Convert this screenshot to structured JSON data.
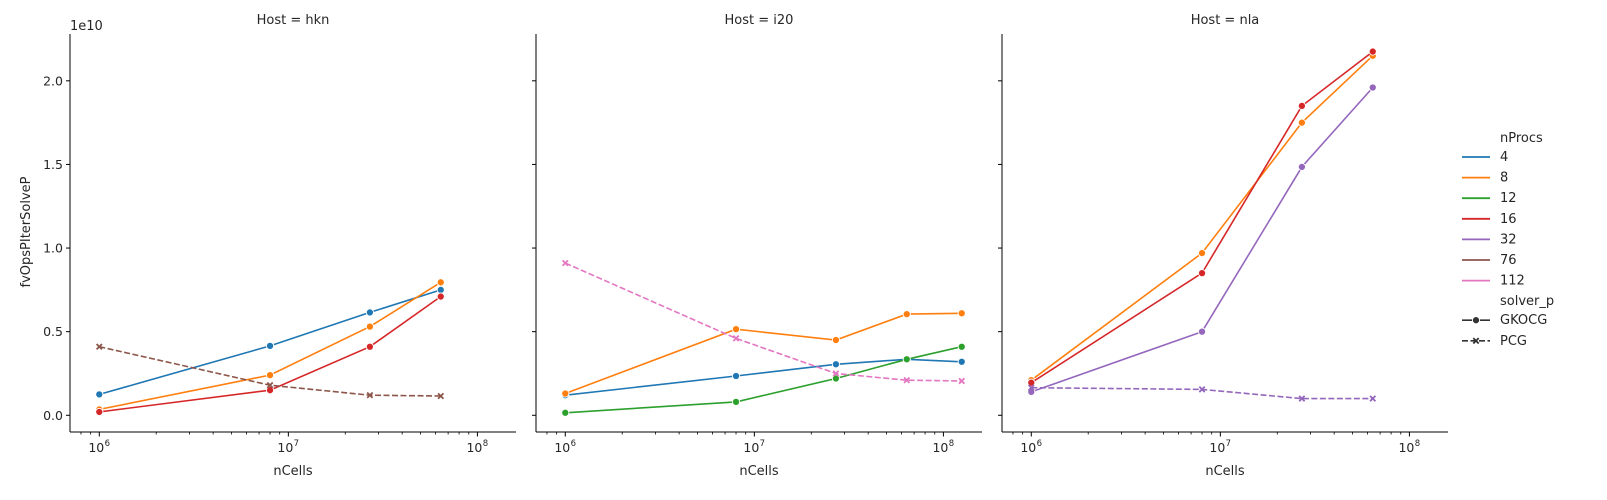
{
  "chart_data": {
    "type": "line",
    "ylabel": "fvOpsPIterSolveP",
    "xlabel": "nCells",
    "y_offset_label": "1e10",
    "x_scale": "log",
    "xlim": [
      700000,
      160000000
    ],
    "ylim": [
      -1000000000.0,
      22800000000.0
    ],
    "y_ticks": [
      0,
      5000000000.0,
      10000000000.0,
      15000000000.0,
      20000000000.0
    ],
    "y_tick_labels": [
      "0.0",
      "0.5",
      "1.0",
      "1.5",
      "2.0"
    ],
    "x_ticks": [
      1000000.0,
      10000000.0,
      100000000.0
    ],
    "x_tick_labels": [
      [
        "10",
        "6"
      ],
      [
        "10",
        "7"
      ],
      [
        "10",
        "8"
      ]
    ],
    "legend": {
      "placement": "right",
      "hue_title": "nProcs",
      "hue": [
        {
          "label": "4",
          "color": "#1f77b4"
        },
        {
          "label": "8",
          "color": "#ff7f0e"
        },
        {
          "label": "12",
          "color": "#2ca02c"
        },
        {
          "label": "16",
          "color": "#d62728"
        },
        {
          "label": "32",
          "color": "#9467bd"
        },
        {
          "label": "76",
          "color": "#8c564b"
        },
        {
          "label": "112",
          "color": "#e377c2"
        }
      ],
      "style_title": "solver_p",
      "style": [
        {
          "label": "GKOCG",
          "marker": "circle",
          "dash": "solid"
        },
        {
          "label": "PCG",
          "marker": "x",
          "dash": "dashed"
        }
      ]
    },
    "panels": [
      {
        "title": "Host = hkn",
        "series": [
          {
            "nprocs": "4",
            "solver": "GKOCG",
            "x": [
              1000000.0,
              8000000.0,
              27000000.0,
              64000000.0
            ],
            "y": [
              1250000000.0,
              4150000000.0,
              6150000000.0,
              7500000000.0
            ]
          },
          {
            "nprocs": "8",
            "solver": "GKOCG",
            "x": [
              1000000.0,
              8000000.0,
              27000000.0,
              64000000.0
            ],
            "y": [
              350000000.0,
              2400000000.0,
              5300000000.0,
              7950000000.0
            ]
          },
          {
            "nprocs": "16",
            "solver": "GKOCG",
            "x": [
              1000000.0,
              8000000.0,
              27000000.0,
              64000000.0
            ],
            "y": [
              200000000.0,
              1500000000.0,
              4100000000.0,
              7100000000.0
            ]
          },
          {
            "nprocs": "76",
            "solver": "PCG",
            "x": [
              1000000.0,
              8000000.0,
              27000000.0,
              64000000.0
            ],
            "y": [
              4100000000.0,
              1800000000.0,
              1200000000.0,
              1150000000.0
            ]
          }
        ]
      },
      {
        "title": "Host = i20",
        "series": [
          {
            "nprocs": "4",
            "solver": "GKOCG",
            "x": [
              1000000.0,
              8000000.0,
              27000000.0,
              64000000.0,
              125000000.0
            ],
            "y": [
              1200000000.0,
              2350000000.0,
              3050000000.0,
              3350000000.0,
              3200000000.0
            ]
          },
          {
            "nprocs": "8",
            "solver": "GKOCG",
            "x": [
              1000000.0,
              8000000.0,
              27000000.0,
              64000000.0,
              125000000.0
            ],
            "y": [
              1300000000.0,
              5150000000.0,
              4500000000.0,
              6050000000.0,
              6100000000.0
            ]
          },
          {
            "nprocs": "12",
            "solver": "GKOCG",
            "x": [
              1000000.0,
              8000000.0,
              27000000.0,
              64000000.0,
              125000000.0
            ],
            "y": [
              150000000.0,
              800000000.0,
              2200000000.0,
              3350000000.0,
              4100000000.0
            ]
          },
          {
            "nprocs": "112",
            "solver": "PCG",
            "x": [
              1000000.0,
              8000000.0,
              27000000.0,
              64000000.0,
              125000000.0
            ],
            "y": [
              9100000000.0,
              4600000000.0,
              2500000000.0,
              2100000000.0,
              2050000000.0
            ]
          }
        ]
      },
      {
        "title": "Host = nla",
        "series": [
          {
            "nprocs": "8",
            "solver": "GKOCG",
            "x": [
              1000000.0,
              8000000.0,
              27000000.0,
              64000000.0
            ],
            "y": [
              2100000000.0,
              9700000000.0,
              17500000000.0,
              21500000000.0
            ]
          },
          {
            "nprocs": "16",
            "solver": "GKOCG",
            "x": [
              1000000.0,
              8000000.0,
              27000000.0,
              64000000.0
            ],
            "y": [
              1950000000.0,
              8500000000.0,
              18500000000.0,
              21750000000.0
            ]
          },
          {
            "nprocs": "32",
            "solver": "GKOCG",
            "x": [
              1000000.0,
              8000000.0,
              27000000.0,
              64000000.0
            ],
            "y": [
              1400000000.0,
              5000000000.0,
              14850000000.0,
              19600000000.0
            ]
          },
          {
            "nprocs": "32",
            "solver": "PCG",
            "x": [
              1000000.0,
              8000000.0,
              27000000.0,
              64000000.0
            ],
            "y": [
              1650000000.0,
              1550000000.0,
              1000000000.0,
              1000000000.0
            ]
          }
        ]
      }
    ]
  }
}
